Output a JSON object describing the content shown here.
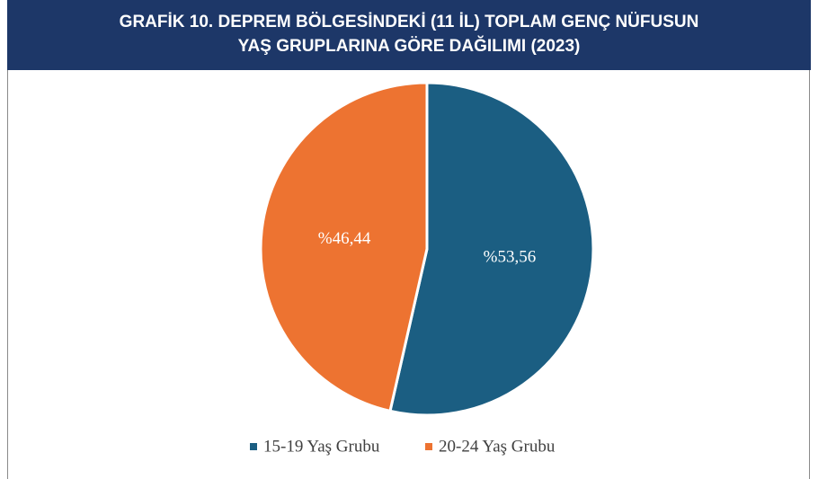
{
  "chart_data": {
    "type": "pie",
    "title": [
      "GRAFİK 10. DEPREM BÖLGESİNDEKİ (11 İL) TOPLAM GENÇ NÜFUSUN",
      "YAŞ GRUPLARINA GÖRE DAĞILIMI (2023)"
    ],
    "categories": [
      "15-19 Yaş Grubu",
      "20-24 Yaş Grubu"
    ],
    "values": [
      53.56,
      46.44
    ],
    "value_labels": [
      "%53,56",
      "%46,44"
    ],
    "colors": [
      "#1b5e82",
      "#ed7331"
    ],
    "legend": "bottom"
  }
}
